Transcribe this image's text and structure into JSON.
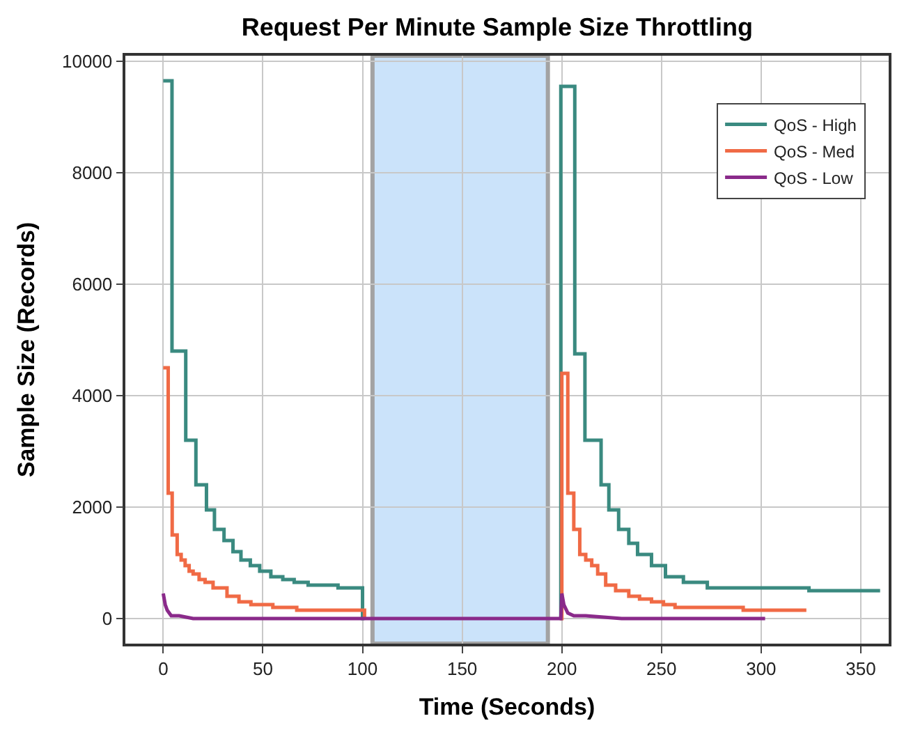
{
  "chart_data": {
    "type": "step",
    "title": "Request Per Minute Sample Size Throttling",
    "xlabel": "Time (Seconds)",
    "ylabel": "Sample Size (Records)",
    "xlim": [
      -19,
      364
    ],
    "ylim": [
      -450,
      10100
    ],
    "xticks": [
      0,
      50,
      100,
      150,
      200,
      250,
      300,
      350
    ],
    "yticks": [
      0,
      2000,
      4000,
      6000,
      8000,
      10000
    ],
    "grid": true,
    "legend": "top right",
    "bands": [
      {
        "axis": "x",
        "from": 105,
        "to": 193,
        "color": "#c6e0fa"
      }
    ],
    "series": [
      {
        "name": "QoS - High",
        "color": "#3a8a80",
        "x": [
          0,
          4.4,
          11.3,
          16.4,
          21.7,
          25.7,
          30.5,
          35,
          39,
          43.7,
          48.4,
          54,
          60,
          65.7,
          72.7,
          87.7,
          100,
          101,
          150,
          199,
          199.5,
          206.5,
          211.6,
          219.7,
          223.6,
          228.5,
          233.6,
          238,
          245,
          252,
          261,
          273,
          284.5,
          324,
          359.7
        ],
        "values": [
          9650,
          4800,
          3200,
          2400,
          1950,
          1600,
          1400,
          1200,
          1050,
          950,
          850,
          750,
          700,
          650,
          600,
          550,
          0,
          0,
          null,
          0,
          9550,
          4750,
          3200,
          2400,
          1950,
          1600,
          1350,
          1150,
          950,
          750,
          650,
          550,
          550,
          500,
          500
        ]
      },
      {
        "name": "QoS - Med",
        "color": "#f06a45",
        "x": [
          0,
          2.5,
          4.5,
          7,
          9,
          11,
          13,
          15,
          18,
          21,
          25,
          32,
          38,
          44,
          50,
          55,
          67,
          80,
          100,
          101,
          150,
          199,
          200,
          203,
          206,
          209,
          212,
          215,
          218,
          222,
          227,
          233.6,
          239,
          245,
          251,
          256.8,
          265,
          273,
          291,
          322.7
        ],
        "values": [
          4500,
          2250,
          1500,
          1150,
          1050,
          950,
          850,
          800,
          700,
          650,
          550,
          400,
          300,
          250,
          250,
          200,
          150,
          150,
          150,
          0,
          null,
          0,
          4400,
          2250,
          1600,
          1150,
          1050,
          950,
          800,
          600,
          500,
          400,
          350,
          300,
          250,
          200,
          200,
          200,
          150,
          150
        ]
      },
      {
        "name": "QoS - Low",
        "type": "line",
        "color": "#8a2a8a",
        "x": [
          0,
          1,
          2,
          4,
          8,
          15,
          30,
          60,
          100,
          150,
          199.5,
          200,
          201,
          203,
          206,
          212,
          230,
          260,
          302
        ],
        "values": [
          450,
          250,
          150,
          50,
          50,
          0,
          0,
          0,
          0,
          0,
          0,
          450,
          250,
          100,
          50,
          50,
          0,
          0,
          0
        ]
      }
    ]
  }
}
